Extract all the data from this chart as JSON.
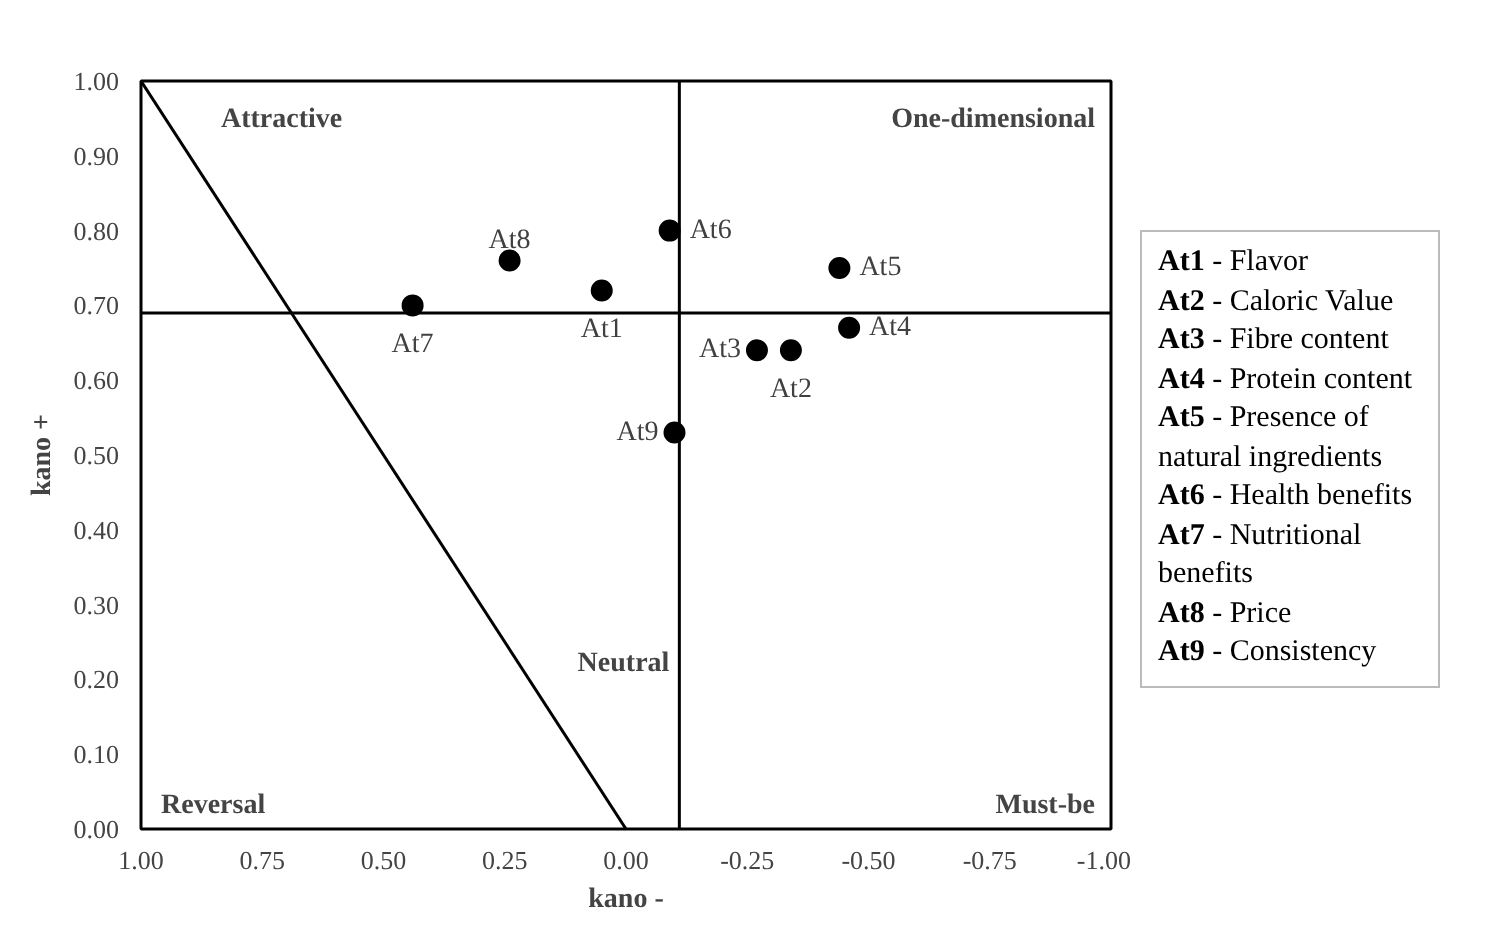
{
  "chart_data": {
    "type": "scatter",
    "xlabel": "kano -",
    "ylabel": "kano +",
    "xlim": [
      1.0,
      -1.0
    ],
    "ylim": [
      0.0,
      1.0
    ],
    "xticks": [
      {
        "value": 1.0,
        "label": "1.00"
      },
      {
        "value": 0.75,
        "label": "0.75"
      },
      {
        "value": 0.5,
        "label": "0.50"
      },
      {
        "value": 0.25,
        "label": "0.25"
      },
      {
        "value": 0.0,
        "label": "0.00"
      },
      {
        "value": -0.25,
        "label": "-0.25"
      },
      {
        "value": -0.5,
        "label": "-0.50"
      },
      {
        "value": -0.75,
        "label": "-0.75"
      },
      {
        "value": -1.0,
        "label": "-1.00"
      }
    ],
    "yticks": [
      {
        "value": 0.0,
        "label": "0.00"
      },
      {
        "value": 0.1,
        "label": "0.10"
      },
      {
        "value": 0.2,
        "label": "0.20"
      },
      {
        "value": 0.3,
        "label": "0.30"
      },
      {
        "value": 0.4,
        "label": "0.40"
      },
      {
        "value": 0.5,
        "label": "0.50"
      },
      {
        "value": 0.6,
        "label": "0.60"
      },
      {
        "value": 0.7,
        "label": "0.70"
      },
      {
        "value": 0.8,
        "label": "0.80"
      },
      {
        "value": 0.9,
        "label": "0.90"
      },
      {
        "value": 1.0,
        "label": "1.00"
      }
    ],
    "grid": false,
    "series": [
      {
        "name": "At1",
        "color": "#000000",
        "marker": "circle",
        "x": [
          0.05
        ],
        "values": [
          0.72
        ]
      },
      {
        "name": "At2",
        "color": "#000000",
        "marker": "circle",
        "x": [
          -0.34
        ],
        "values": [
          0.64
        ]
      },
      {
        "name": "At3",
        "color": "#000000",
        "marker": "circle",
        "x": [
          -0.27
        ],
        "values": [
          0.64
        ]
      },
      {
        "name": "At4",
        "color": "#000000",
        "marker": "circle",
        "x": [
          -0.46
        ],
        "values": [
          0.67
        ]
      },
      {
        "name": "At5",
        "color": "#000000",
        "marker": "circle",
        "x": [
          -0.44
        ],
        "values": [
          0.75
        ]
      },
      {
        "name": "At6",
        "color": "#000000",
        "marker": "circle",
        "x": [
          -0.09
        ],
        "values": [
          0.8
        ]
      },
      {
        "name": "At7",
        "color": "#000000",
        "marker": "circle",
        "x": [
          0.44
        ],
        "values": [
          0.7
        ]
      },
      {
        "name": "At8",
        "color": "#000000",
        "marker": "circle",
        "x": [
          0.24
        ],
        "values": [
          0.76
        ]
      },
      {
        "name": "At9",
        "color": "#000000",
        "marker": "circle",
        "x": [
          -0.1
        ],
        "values": [
          0.53
        ]
      },
      {
        "type": "line",
        "color": "#000000",
        "x": [
          1.0,
          0.0
        ],
        "values": [
          1.0,
          0.0
        ]
      }
    ],
    "ref_lines": [
      {
        "axis": "x",
        "value": -0.11,
        "color": "#000000"
      },
      {
        "axis": "y",
        "value": 0.69,
        "color": "#000000"
      }
    ],
    "annotations": [
      "Attractive",
      "One-dimensional",
      "Neutral",
      "Reversal",
      "Must-be",
      "At1 - Flavor",
      "At2 - Caloric Value",
      "At3 - Fibre content",
      "At4 - Protein content",
      "At5 - Presence of natural ingredients",
      "At6 - Health benefits",
      "At7 - Nutritional benefits",
      "At8 - Price",
      "At9 - Consistency"
    ]
  }
}
